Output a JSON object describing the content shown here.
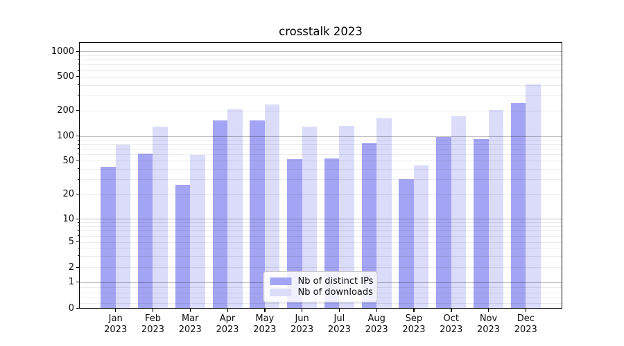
{
  "chart_data": {
    "type": "bar",
    "title": "crosstalk 2023",
    "categories": [
      "Jan",
      "Feb",
      "Mar",
      "Apr",
      "May",
      "Jun",
      "Jul",
      "Aug",
      "Sep",
      "Oct",
      "Nov",
      "Dec"
    ],
    "x_tick_second_line": "2023",
    "series": [
      {
        "name": "Nb of distinct IPs",
        "color": "#a4a4f4",
        "values": [
          42,
          61,
          26,
          153,
          153,
          52,
          53,
          82,
          30,
          98,
          92,
          242
        ]
      },
      {
        "name": "Nb of downloads",
        "color": "#dbdbfa",
        "values": [
          78,
          129,
          59,
          206,
          236,
          129,
          132,
          161,
          44,
          172,
          203,
          405
        ]
      }
    ],
    "ylabel": "",
    "xlabel": "",
    "yscale": "log-like (symlog)",
    "y_tick_labels": [
      "0",
      "1",
      "2",
      "5",
      "10",
      "20",
      "50",
      "100",
      "200",
      "500",
      "1000"
    ],
    "ylim": [
      0,
      1400
    ],
    "grid": true,
    "major_grid_at": [
      1,
      10,
      100,
      1000
    ],
    "legend_position": "lower center",
    "background_color": "#ffffff"
  }
}
